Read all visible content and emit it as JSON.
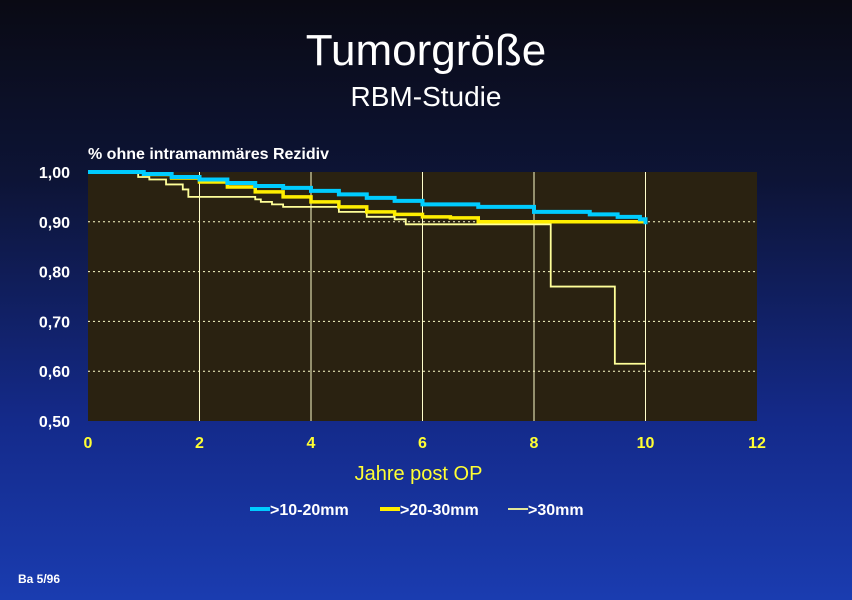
{
  "slide": {
    "title": "Tumorgröße",
    "subtitle": "RBM-Studie",
    "footer": "Ba 5/96"
  },
  "chart_data": {
    "type": "line",
    "step": true,
    "title": "Tumorgröße",
    "subtitle": "RBM-Studie",
    "ylabel": "% ohne intramammäres Rezidiv",
    "xlabel": "Jahre post OP",
    "xlim": [
      0,
      12
    ],
    "ylim": [
      0.5,
      1.0
    ],
    "xticks": [
      "0",
      "2",
      "4",
      "6",
      "8",
      "10",
      "12"
    ],
    "yticks": [
      "0,50",
      "0,60",
      "0,70",
      "0,80",
      "0,90",
      "1,00"
    ],
    "grid": true,
    "legend_position": "bottom",
    "colors": {
      "plot_background": "#2a2211",
      "gridline": "#ffffcc"
    },
    "series": [
      {
        "name": ">10-20mm",
        "color": "#00ccff",
        "x": [
          0,
          1.0,
          1.5,
          2.0,
          2.5,
          3.0,
          3.5,
          4.0,
          4.5,
          5.0,
          5.5,
          6.0,
          7.0,
          8.0,
          9.0,
          9.5,
          9.9,
          10.0
        ],
        "y": [
          1.0,
          0.996,
          0.99,
          0.985,
          0.978,
          0.972,
          0.968,
          0.962,
          0.955,
          0.948,
          0.942,
          0.935,
          0.93,
          0.92,
          0.915,
          0.91,
          0.905,
          0.895
        ]
      },
      {
        "name": ">20-30mm",
        "color": "#ffee00",
        "x": [
          0,
          1.0,
          1.5,
          2.0,
          2.5,
          3.0,
          3.5,
          4.0,
          4.5,
          5.0,
          5.5,
          6.0,
          6.5,
          7.0,
          8.0,
          9.0,
          10.0
        ],
        "y": [
          1.0,
          0.995,
          0.988,
          0.98,
          0.97,
          0.96,
          0.95,
          0.94,
          0.93,
          0.92,
          0.915,
          0.91,
          0.908,
          0.9,
          0.9,
          0.9,
          0.9
        ]
      },
      {
        "name": ">30mm",
        "color": "#ffff99",
        "x": [
          0,
          0.9,
          1.1,
          1.4,
          1.7,
          1.8,
          2.0,
          3.0,
          3.1,
          3.3,
          3.5,
          4.5,
          5.0,
          5.5,
          5.7,
          7.0,
          8.0,
          8.25,
          8.3,
          9.4,
          9.45,
          10.0
        ],
        "y": [
          1.0,
          0.99,
          0.985,
          0.975,
          0.965,
          0.95,
          0.95,
          0.945,
          0.94,
          0.935,
          0.93,
          0.92,
          0.91,
          0.905,
          0.895,
          0.895,
          0.895,
          0.895,
          0.77,
          0.77,
          0.615,
          0.615
        ]
      }
    ]
  }
}
